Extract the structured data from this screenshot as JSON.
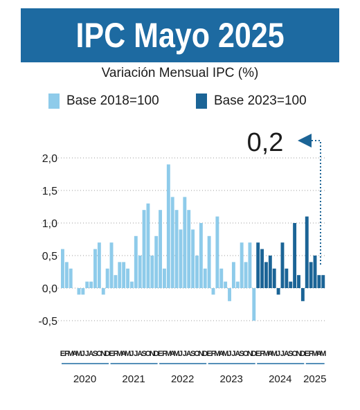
{
  "title": "IPC Mayo 2025",
  "subtitle": "Variación Mensual IPC (%)",
  "colors": {
    "banner": "#1d6aa1",
    "base2018": "#8ecbea",
    "base2023": "#1b6496",
    "arrow": "#1b6496"
  },
  "legend": [
    {
      "label": "Base 2018=100",
      "color": "#8ecbea"
    },
    {
      "label": "Base 2023=100",
      "color": "#1b6496"
    }
  ],
  "callout": {
    "label": "0,2"
  },
  "chart_data": {
    "type": "bar",
    "title": "Variación Mensual IPC (%)",
    "ylim": [
      -0.5,
      2.0
    ],
    "yticks": [
      "2,0",
      "1,5",
      "1,0",
      "0,5",
      "0,0",
      "-0,5"
    ],
    "ytick_values": [
      2.0,
      1.5,
      1.0,
      0.5,
      0.0,
      -0.5
    ],
    "month_letters": [
      "E",
      "F",
      "M",
      "A",
      "M",
      "J",
      "J",
      "A",
      "S",
      "O",
      "N",
      "D"
    ],
    "years": [
      {
        "year": "2020",
        "months": 12
      },
      {
        "year": "2021",
        "months": 12
      },
      {
        "year": "2022",
        "months": 12
      },
      {
        "year": "2023",
        "months": 12
      },
      {
        "year": "2024",
        "months": 12
      },
      {
        "year": "2025",
        "months": 5
      }
    ],
    "series": [
      {
        "name": "Base 2018=100",
        "start_index": 0,
        "values": [
          0.6,
          0.4,
          0.3,
          0.0,
          -0.1,
          -0.1,
          0.1,
          0.1,
          0.6,
          0.7,
          -0.1,
          0.3,
          0.7,
          0.2,
          0.4,
          0.4,
          0.3,
          0.1,
          0.8,
          0.5,
          1.2,
          1.3,
          0.5,
          0.8,
          1.2,
          0.3,
          1.9,
          1.4,
          1.2,
          0.9,
          1.4,
          1.2,
          0.9,
          0.5,
          1.0,
          0.3,
          0.8,
          -0.1,
          1.1,
          0.3,
          0.1,
          -0.2,
          0.4,
          0.1,
          0.7,
          0.4,
          0.7,
          -0.5
        ]
      },
      {
        "name": "Base 2023=100",
        "start_index": 48,
        "values": [
          0.7,
          0.6,
          0.4,
          0.5,
          0.3,
          -0.1,
          0.7,
          0.3,
          0.1,
          1.0,
          0.2,
          -0.2,
          1.1,
          0.4,
          0.5,
          0.2,
          0.2
        ]
      }
    ]
  }
}
